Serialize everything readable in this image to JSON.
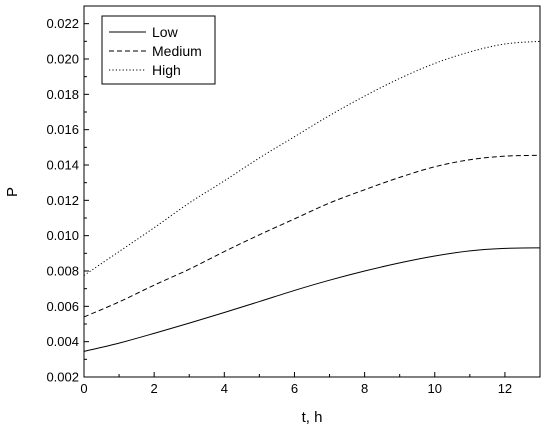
{
  "chart_data": {
    "type": "line",
    "xlabel": "t, h",
    "ylabel": "P",
    "xlim": [
      0,
      13
    ],
    "ylim": [
      0.002,
      0.023
    ],
    "x_ticks": [
      "0",
      "2",
      "4",
      "6",
      "8",
      "10",
      "12"
    ],
    "y_ticks": [
      "0.002",
      "0.004",
      "0.006",
      "0.008",
      "0.010",
      "0.012",
      "0.014",
      "0.016",
      "0.018",
      "0.020",
      "0.022"
    ],
    "grid": false,
    "legend_position": "top-left",
    "x": [
      0,
      1,
      2,
      3,
      4,
      5,
      6,
      7,
      8,
      9,
      10,
      11,
      12,
      13
    ],
    "series": [
      {
        "name": "Low",
        "line_style": "solid",
        "values": [
          0.00345,
          0.00392,
          0.00447,
          0.00505,
          0.00565,
          0.00627,
          0.0069,
          0.00748,
          0.008,
          0.00846,
          0.00885,
          0.00914,
          0.00928,
          0.00931
        ]
      },
      {
        "name": "Medium",
        "line_style": "dashed",
        "values": [
          0.0054,
          0.00625,
          0.0072,
          0.0081,
          0.0091,
          0.01005,
          0.01095,
          0.01185,
          0.0126,
          0.0133,
          0.0139,
          0.0143,
          0.0145,
          0.01455
        ]
      },
      {
        "name": "High",
        "line_style": "dotted",
        "values": [
          0.00775,
          0.0091,
          0.01045,
          0.01185,
          0.0131,
          0.0144,
          0.0156,
          0.0168,
          0.0179,
          0.0189,
          0.01975,
          0.0204,
          0.02085,
          0.021
        ]
      }
    ],
    "colors": {
      "line": "#000000",
      "frame": "#000000",
      "background": "#ffffff"
    }
  }
}
